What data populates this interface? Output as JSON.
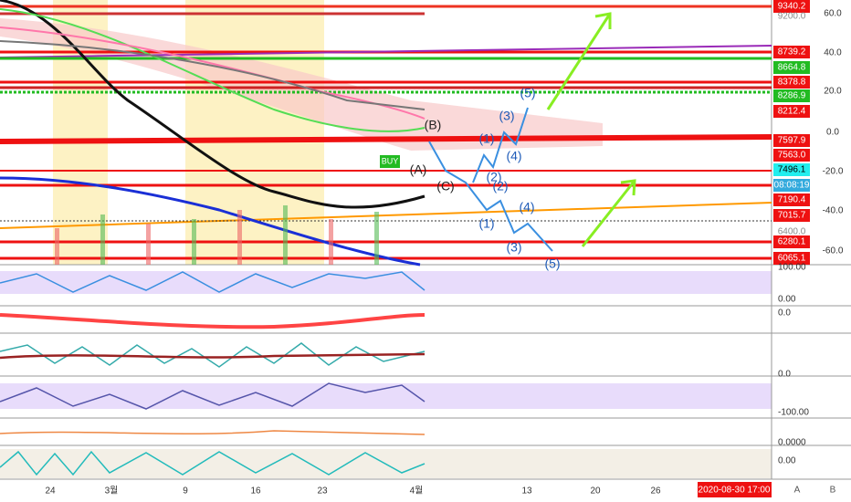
{
  "price_labels": [
    "9340.2",
    "8739.2",
    "8664.8",
    "8378.8",
    "8286.9",
    "8212.4",
    "7597.9",
    "7563.0",
    "7496.1",
    "08:08:19",
    "7190.4",
    "7015.7",
    "6280.1",
    "6065.1"
  ],
  "price_axis": [
    "9200.0",
    "6400.0"
  ],
  "percent_axis": [
    "60.0",
    "40.0",
    "20.0",
    "0.0",
    "-20.0",
    "-40.0",
    "-60.0"
  ],
  "panel_labels": [
    "100.00",
    "0.00",
    "0.0",
    "0.0",
    "-100.00",
    "0.0000",
    "0.00"
  ],
  "x_axis": [
    "24",
    "3월",
    "9",
    "16",
    "23",
    "4월",
    "13",
    "20",
    "26"
  ],
  "footer": {
    "datetime": "2020-08-30  17:00",
    "a": "A",
    "b": "B"
  },
  "waves": {
    "blue": [
      "(5)",
      "(3)",
      "(1)",
      "(4)",
      "(2)",
      "(2)",
      "(4)",
      "(1)",
      "(3)",
      "(5)"
    ],
    "black": [
      "(B)",
      "(A)",
      "(C)"
    ],
    "signal": "BUY"
  }
}
